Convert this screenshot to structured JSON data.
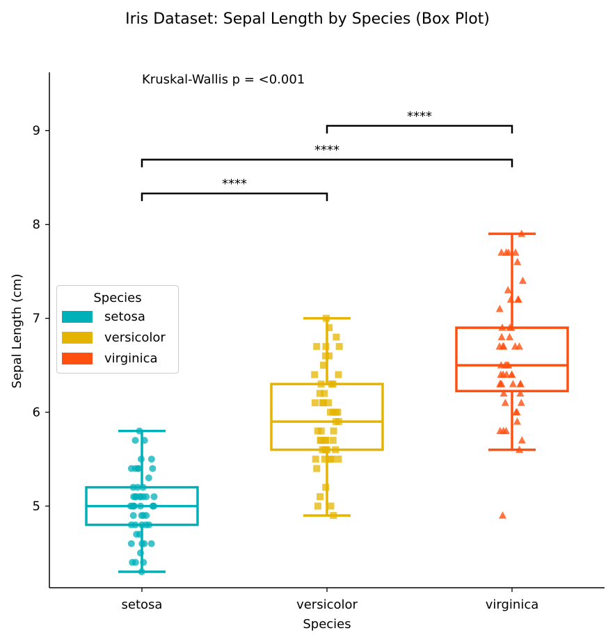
{
  "chart_data": {
    "type": "box",
    "title": "Iris Dataset: Sepal Length by Species (Box Plot)",
    "xlabel": "Species",
    "ylabel": "Sepal Length (cm)",
    "ylim": [
      4.13,
      9.62
    ],
    "yticks": [
      5,
      6,
      7,
      8,
      9
    ],
    "annotation": "Kruskal-Wallis p = <0.001",
    "categories": [
      "setosa",
      "versicolor",
      "virginica"
    ],
    "colors": [
      "#00b0b9",
      "#e5b400",
      "#ff5010"
    ],
    "legend": {
      "title": "Species",
      "location": "center-left"
    },
    "boxes": [
      {
        "name": "setosa",
        "whisker_low": 4.3,
        "q1": 4.8,
        "median": 5.0,
        "q3": 5.2,
        "whisker_high": 5.8,
        "marker": "circle",
        "points": [
          4.3,
          4.4,
          4.4,
          4.4,
          4.5,
          4.6,
          4.6,
          4.6,
          4.6,
          4.7,
          4.7,
          4.8,
          4.8,
          4.8,
          4.8,
          4.8,
          4.9,
          4.9,
          4.9,
          4.9,
          5.0,
          5.0,
          5.0,
          5.0,
          5.0,
          5.0,
          5.0,
          5.0,
          5.1,
          5.1,
          5.1,
          5.1,
          5.1,
          5.1,
          5.1,
          5.1,
          5.2,
          5.2,
          5.2,
          5.3,
          5.4,
          5.4,
          5.4,
          5.4,
          5.4,
          5.5,
          5.5,
          5.7,
          5.7,
          5.8
        ]
      },
      {
        "name": "versicolor",
        "whisker_low": 4.9,
        "q1": 5.6,
        "median": 5.9,
        "q3": 6.3,
        "whisker_high": 7.0,
        "marker": "square",
        "points": [
          4.9,
          5.0,
          5.0,
          5.1,
          5.2,
          5.4,
          5.5,
          5.5,
          5.5,
          5.5,
          5.5,
          5.6,
          5.6,
          5.6,
          5.6,
          5.6,
          5.7,
          5.7,
          5.7,
          5.7,
          5.7,
          5.8,
          5.8,
          5.8,
          5.9,
          5.9,
          6.0,
          6.0,
          6.0,
          6.0,
          6.1,
          6.1,
          6.1,
          6.1,
          6.2,
          6.2,
          6.3,
          6.3,
          6.3,
          6.4,
          6.4,
          6.5,
          6.6,
          6.6,
          6.7,
          6.7,
          6.7,
          6.8,
          6.9,
          7.0
        ]
      },
      {
        "name": "virginica",
        "whisker_low": 5.6,
        "q1": 6.225,
        "median": 6.5,
        "q3": 6.9,
        "whisker_high": 7.9,
        "marker": "triangle",
        "outliers": [
          4.9
        ],
        "points": [
          4.9,
          5.6,
          5.7,
          5.8,
          5.8,
          5.8,
          5.9,
          6.0,
          6.0,
          6.1,
          6.1,
          6.2,
          6.2,
          6.3,
          6.3,
          6.3,
          6.3,
          6.3,
          6.3,
          6.4,
          6.4,
          6.4,
          6.4,
          6.4,
          6.5,
          6.5,
          6.5,
          6.5,
          6.7,
          6.7,
          6.7,
          6.7,
          6.7,
          6.8,
          6.8,
          6.9,
          6.9,
          6.9,
          7.1,
          7.2,
          7.2,
          7.2,
          7.3,
          7.4,
          7.6,
          7.7,
          7.7,
          7.7,
          7.7,
          7.9
        ]
      }
    ],
    "comparisons": [
      {
        "from": "setosa",
        "to": "versicolor",
        "y_value": 8.33,
        "label": "****"
      },
      {
        "from": "setosa",
        "to": "virginica",
        "y_value": 8.69,
        "label": "****"
      },
      {
        "from": "versicolor",
        "to": "virginica",
        "y_value": 9.05,
        "label": "****"
      }
    ]
  }
}
